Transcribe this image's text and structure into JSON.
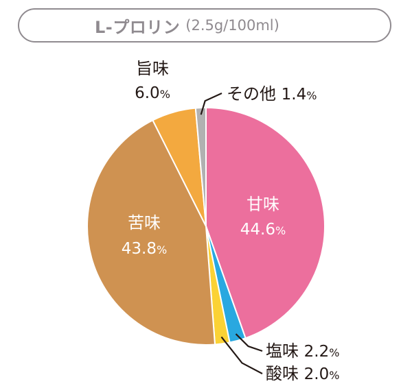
{
  "header": {
    "title": "L-プロリン",
    "subtitle": "(2.5g/100ml)"
  },
  "colors": {
    "sweet": "#ec6f9d",
    "salty": "#29a8e0",
    "sour": "#fbd235",
    "bitter": "#cf9251",
    "umami": "#f3a93f",
    "other": "#b1b1b1",
    "title": "#8f8a8f",
    "text": "#231815",
    "inner_text": "#ffffff"
  },
  "chart_data": {
    "type": "pie",
    "start_angle_deg": 0,
    "direction": "clockwise",
    "slices": [
      {
        "key": "sweet",
        "label": "甘味",
        "value": 44.6,
        "value_text": "44.6",
        "unit": "%",
        "color": "#ec6f9d",
        "label_placement": "inside"
      },
      {
        "key": "salty",
        "label": "塩味",
        "value": 2.2,
        "value_text": "2.2",
        "unit": "%",
        "color": "#29a8e0",
        "label_placement": "outside"
      },
      {
        "key": "sour",
        "label": "酸味",
        "value": 2.0,
        "value_text": "2.0",
        "unit": "%",
        "color": "#fbd235",
        "label_placement": "outside"
      },
      {
        "key": "bitter",
        "label": "苦味",
        "value": 43.8,
        "value_text": "43.8",
        "unit": "%",
        "color": "#cf9251",
        "label_placement": "inside"
      },
      {
        "key": "umami",
        "label": "旨味",
        "value": 6.0,
        "value_text": "6.0",
        "unit": "%",
        "color": "#f3a93f",
        "label_placement": "outside"
      },
      {
        "key": "other",
        "label": "その他",
        "value": 1.4,
        "value_text": "1.4",
        "unit": "%",
        "color": "#b1b1b1",
        "label_placement": "outside"
      }
    ]
  }
}
